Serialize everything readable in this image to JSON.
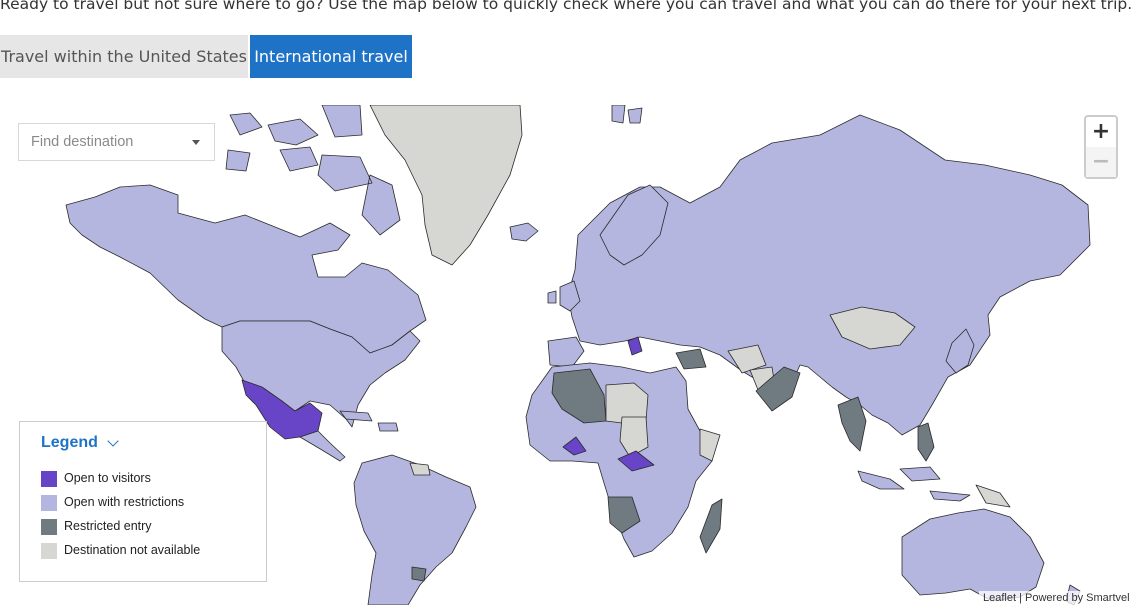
{
  "intro_text": "Ready to travel but not sure where to go? Use the map below to quickly check where you can travel and what you can do there for your next trip.",
  "tabs": [
    {
      "label": "Travel within the United States",
      "active": false
    },
    {
      "label": "International travel",
      "active": true
    }
  ],
  "search": {
    "placeholder": "Find destination"
  },
  "zoom": {
    "in_label": "+",
    "out_label": "−"
  },
  "legend": {
    "title": "Legend",
    "items": [
      {
        "label": "Open to visitors",
        "color": "#6845c6"
      },
      {
        "label": "Open with restrictions",
        "color": "#b4b6df"
      },
      {
        "label": "Restricted entry",
        "color": "#6f7a81"
      },
      {
        "label": "Destination not available",
        "color": "#d6d7d3"
      }
    ]
  },
  "attribution": {
    "leaflet": "Leaflet",
    "separator": " | ",
    "powered": "Powered by Smartvel"
  },
  "colors": {
    "accent": "#1f73c7",
    "open": "#6845c6",
    "restricted": "#b4b6df",
    "blocked": "#6f7a81",
    "unavailable": "#d6d7d3"
  }
}
